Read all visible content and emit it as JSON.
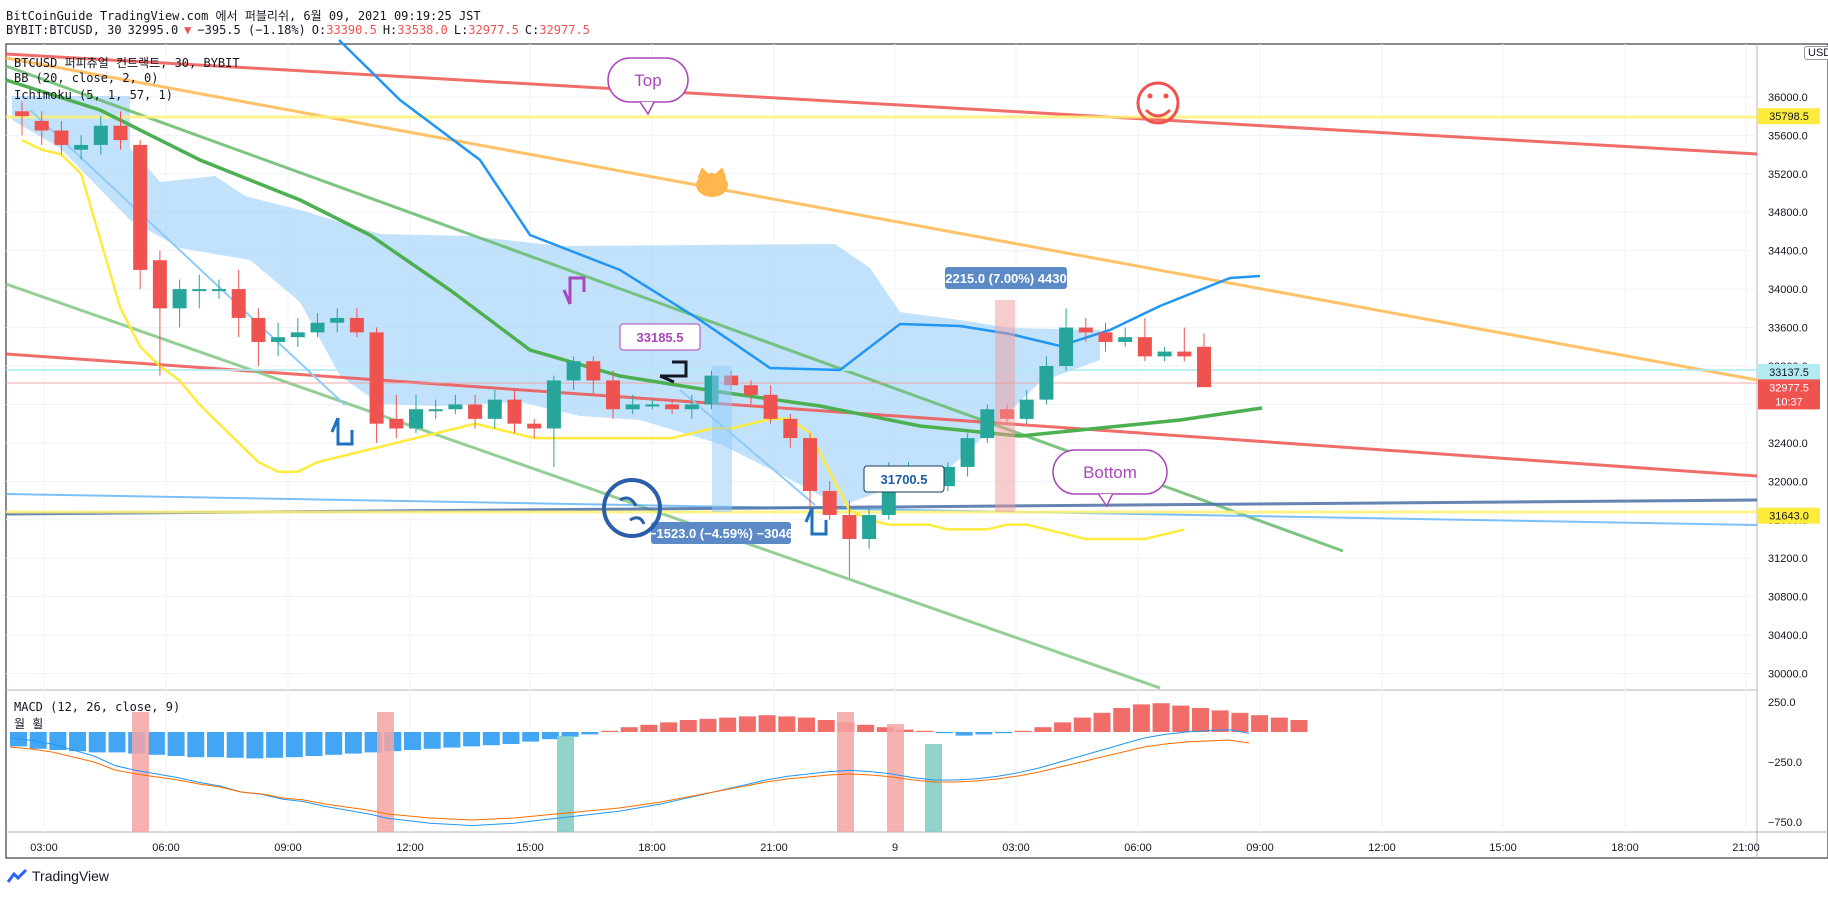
{
  "header": {
    "line1": "BitCoinGuide TradingView.com 에서 퍼블리쉬, 6월 09, 2021 09:19:25 JST",
    "symbol": "BYBIT:BTCUSD, 30",
    "last": "32995.0",
    "arrow": "▼",
    "change": "−395.5 (−1.18%)",
    "o_label": "O:",
    "o": "33390.5",
    "h_label": "H:",
    "h": "33538.0",
    "l_label": "L:",
    "l": "32977.5",
    "c_label": "C:",
    "c": "32977.5"
  },
  "legend": {
    "title": "BTCUSD 퍼피츄얼 컨트랙트, 30, BYBIT",
    "bb": "BB (20, close, 2, 0)",
    "ichimoku": "Ichimoku (5, 1, 57, 1)",
    "macd": "MACD (12, 26, close, 9)",
    "macd_sub": "월 휠"
  },
  "currency": "USD",
  "footer": {
    "brand": "TradingView"
  },
  "colors": {
    "up": "#26a69a",
    "down": "#ef5350",
    "bb": "#ffeb3b",
    "ichi_a": "#2196f3",
    "ichi_b": "#4caf50",
    "cloud": "#90caf9"
  },
  "chart_data": {
    "type": "candlestick",
    "x_ticks": [
      "03:00",
      "06:00",
      "09:00",
      "12:00",
      "15:00",
      "18:00",
      "21:00",
      "9",
      "03:00",
      "06:00",
      "09:00",
      "12:00",
      "15:00",
      "18:00",
      "21:00"
    ],
    "y_ticks": [
      36000,
      35600,
      35200,
      34800,
      34400,
      34000,
      33600,
      33200,
      32800,
      32400,
      32000,
      31600,
      31200,
      30800,
      30400,
      30000
    ],
    "ylim": [
      29850,
      36550
    ],
    "price_labels": [
      {
        "value": 35798.5,
        "text": "35798.5",
        "color": "#ffeb3b",
        "tcolor": "#131722"
      },
      {
        "value": 33137.5,
        "text": "33137.5",
        "color": "#b2ebf2",
        "tcolor": "#131722"
      },
      {
        "value": 32977.5,
        "text": "32977.5",
        "color": "#ef5350",
        "tcolor": "#ffffff",
        "sub": "10:37"
      },
      {
        "value": 31643.0,
        "text": "31643.0",
        "color": "#ffeb3b",
        "tcolor": "#131722"
      }
    ],
    "candles": [
      [
        35850,
        35800,
        35950,
        35600
      ],
      [
        35750,
        35650,
        35850,
        35500
      ],
      [
        35650,
        35500,
        35750,
        35400
      ],
      [
        35450,
        35500,
        35600,
        35350
      ],
      [
        35500,
        35700,
        35800,
        35400
      ],
      [
        35700,
        35550,
        35850,
        35450
      ],
      [
        35500,
        34200,
        35550,
        34000
      ],
      [
        34300,
        33800,
        34400,
        33100
      ],
      [
        33800,
        34000,
        34100,
        33600
      ],
      [
        34000,
        34000,
        34150,
        33800
      ],
      [
        34000,
        34000,
        34100,
        33900
      ],
      [
        34000,
        33700,
        34200,
        33500
      ],
      [
        33700,
        33450,
        33800,
        33200
      ],
      [
        33450,
        33500,
        33650,
        33300
      ],
      [
        33500,
        33550,
        33700,
        33400
      ],
      [
        33550,
        33650,
        33750,
        33500
      ],
      [
        33650,
        33700,
        33800,
        33550
      ],
      [
        33700,
        33550,
        33800,
        33500
      ],
      [
        33550,
        32600,
        33600,
        32400
      ],
      [
        32650,
        32550,
        32900,
        32450
      ],
      [
        32550,
        32750,
        32900,
        32500
      ],
      [
        32750,
        32750,
        32850,
        32650
      ],
      [
        32750,
        32800,
        32900,
        32700
      ],
      [
        32800,
        32650,
        32900,
        32550
      ],
      [
        32650,
        32850,
        32950,
        32550
      ],
      [
        32850,
        32600,
        32950,
        32500
      ],
      [
        32600,
        32550,
        32650,
        32450
      ],
      [
        32550,
        33050,
        33100,
        32150
      ],
      [
        33050,
        33250,
        33300,
        32950
      ],
      [
        33250,
        33050,
        33300,
        32900
      ],
      [
        33050,
        32750,
        33150,
        32650
      ],
      [
        32750,
        32800,
        32900,
        32700
      ],
      [
        32800,
        32800,
        32850,
        32750
      ],
      [
        32800,
        32750,
        32850,
        32700
      ],
      [
        32750,
        32800,
        32900,
        32650
      ],
      [
        32800,
        33100,
        33150,
        32750
      ],
      [
        33100,
        33000,
        33150,
        32950
      ],
      [
        33000,
        32900,
        33050,
        32800
      ],
      [
        32900,
        32650,
        33000,
        32600
      ],
      [
        32650,
        32450,
        32700,
        32350
      ],
      [
        32450,
        31900,
        32500,
        31700
      ],
      [
        31900,
        31650,
        32000,
        31600
      ],
      [
        31650,
        31400,
        31800,
        31000
      ],
      [
        31400,
        31650,
        31750,
        31300
      ],
      [
        31650,
        32100,
        32200,
        31600
      ],
      [
        32100,
        32100,
        32200,
        32000
      ],
      [
        32100,
        31950,
        32150,
        31900
      ],
      [
        31950,
        32150,
        32200,
        31900
      ],
      [
        32150,
        32450,
        32500,
        32050
      ],
      [
        32450,
        32750,
        32800,
        32400
      ],
      [
        32750,
        32650,
        32800,
        32600
      ],
      [
        32650,
        32850,
        32950,
        32600
      ],
      [
        32850,
        33200,
        33300,
        32800
      ],
      [
        33200,
        33600,
        33800,
        33150
      ],
      [
        33600,
        33550,
        33700,
        33450
      ],
      [
        33550,
        33450,
        33650,
        33350
      ],
      [
        33450,
        33500,
        33600,
        33400
      ],
      [
        33500,
        33300,
        33700,
        33250
      ],
      [
        33300,
        33350,
        33400,
        33250
      ],
      [
        33350,
        33300,
        33600,
        33250
      ],
      [
        33400,
        32980,
        33540,
        32977
      ]
    ],
    "bb_lower": [
      35550,
      35450,
      35400,
      35200,
      34500,
      33800,
      33400,
      33200,
      33050,
      32800,
      32600,
      32400,
      32200,
      32100,
      32100,
      32200,
      32250,
      32300,
      32350,
      32400,
      32450,
      32500,
      32550,
      32600,
      32550,
      32500,
      32450,
      32450,
      32450,
      32450,
      32450,
      32450,
      32450,
      32450,
      32500,
      32550,
      32550,
      32600,
      32650,
      32650,
      32500,
      32100,
      31700,
      31600,
      31550,
      31550,
      31550,
      31500,
      31500,
      31500,
      31550,
      31550,
      31500,
      31450,
      31400,
      31400,
      31400,
      31400,
      31450,
      31500
    ],
    "ichi_a_line": [
      [
        17,
        36550
      ],
      [
        25,
        35400
      ],
      [
        30,
        34500
      ],
      [
        39,
        33000
      ],
      [
        44,
        32950
      ],
      [
        48,
        33300
      ],
      [
        54,
        33400
      ],
      [
        60,
        33350
      ],
      [
        64,
        33400
      ],
      [
        70,
        33400
      ],
      [
        74,
        33650
      ],
      [
        78,
        33750
      ],
      [
        83,
        33750
      ],
      [
        90,
        33650
      ],
      [
        97,
        33650
      ],
      [
        104,
        33650
      ],
      [
        110,
        33750
      ],
      [
        118,
        33850
      ],
      [
        125,
        34050
      ],
      [
        130,
        34100
      ]
    ],
    "macd_hist": [
      -120,
      -140,
      -150,
      -160,
      -170,
      -170,
      -180,
      -190,
      -200,
      -210,
      -210,
      -215,
      -220,
      -215,
      -210,
      -200,
      -190,
      -180,
      -170,
      -160,
      -150,
      -140,
      -130,
      -120,
      -110,
      -100,
      -80,
      -60,
      -40,
      -20,
      10,
      40,
      60,
      80,
      100,
      110,
      120,
      130,
      140,
      130,
      120,
      100,
      80,
      60,
      40,
      20,
      10,
      -10,
      -30,
      -20,
      -10,
      10,
      40,
      80,
      120,
      160,
      200,
      230,
      240,
      220,
      200,
      180,
      160,
      140,
      120,
      100
    ],
    "macd_signal": [
      -50,
      -70,
      -100,
      -150,
      -200,
      -280,
      -320,
      -350,
      -380,
      -420,
      -450,
      -500,
      -520,
      -560,
      -580,
      -620,
      -650,
      -680,
      -720,
      -740,
      -760,
      -770,
      -780,
      -770,
      -760,
      -740,
      -720,
      -700,
      -680,
      -660,
      -630,
      -600,
      -560,
      -520,
      -480,
      -440,
      -400,
      -370,
      -350,
      -330,
      -320,
      -330,
      -350,
      -380,
      -400,
      -400,
      -390,
      -370,
      -340,
      -300,
      -250,
      -200,
      -150,
      -100,
      -50,
      -20,
      0,
      10,
      20,
      -10
    ],
    "annotations": [
      {
        "type": "price_tag",
        "text": "33185.5"
      },
      {
        "type": "price_tag",
        "text": "31700.5"
      },
      {
        "type": "range",
        "text": "2215.0 (7.00%) 4430"
      },
      {
        "type": "range",
        "text": "−1523.0 (−4.59%) −3046"
      },
      {
        "type": "callout",
        "text": "Top"
      },
      {
        "type": "callout",
        "text": "Bottom"
      }
    ],
    "macd_ticks": [
      250.0,
      -250.0,
      -750.0
    ],
    "macd_tick_labels": [
      "250.0",
      "−250.0",
      "−750.0"
    ]
  }
}
